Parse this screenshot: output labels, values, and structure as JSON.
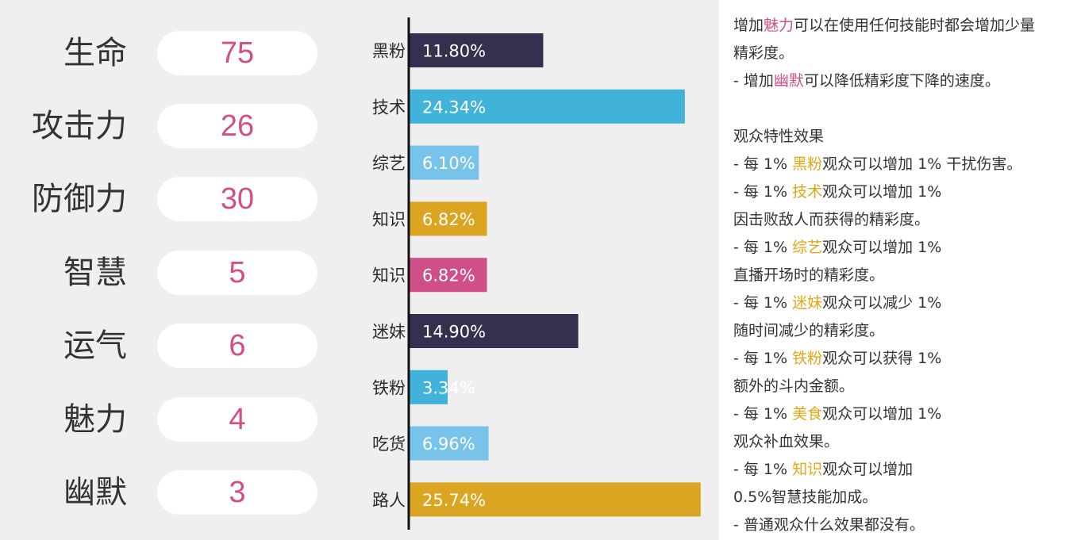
{
  "stats": [
    {
      "label": "生命",
      "value": "75"
    },
    {
      "label": "攻击力",
      "value": "26"
    },
    {
      "label": "防御力",
      "value": "30"
    },
    {
      "label": "智慧",
      "value": "5"
    },
    {
      "label": "运气",
      "value": "6"
    },
    {
      "label": "魅力",
      "value": "4"
    },
    {
      "label": "幽默",
      "value": "3"
    }
  ],
  "chart_data": {
    "type": "bar",
    "orientation": "horizontal",
    "categories": [
      "黑粉",
      "技术",
      "综艺",
      "知识",
      "知识",
      "迷妹",
      "铁粉",
      "吃货",
      "路人"
    ],
    "values": [
      11.8,
      24.34,
      6.1,
      6.82,
      6.82,
      14.9,
      3.34,
      6.96,
      25.74
    ],
    "value_labels": [
      "11.80%",
      "24.34%",
      "6.10%",
      "6.82%",
      "6.82%",
      "14.90%",
      "3.34%",
      "6.96%",
      "25.74%"
    ],
    "colors": [
      "#35304f",
      "#41b3da",
      "#78c3ea",
      "#dba522",
      "#d04f88",
      "#35304f",
      "#41b3da",
      "#78c3ea",
      "#dba522"
    ],
    "xlim": [
      0,
      26
    ],
    "title": "",
    "xlabel": "",
    "ylabel": "",
    "grid": false,
    "legend": "none"
  },
  "info": {
    "line1": {
      "pre": "增加",
      "hl": "魅力",
      "post": "可以在使用任何技能时都会增加少量"
    },
    "line2": "精彩度。",
    "line3": {
      "pre": "- 增加",
      "hl": "幽默",
      "post": "可以降低精彩度下降的速度。"
    },
    "heading": "观众特性效果",
    "effects": [
      {
        "pre": "- 每 1% ",
        "hl": "黑粉",
        "post": "观众可以增加 1% 干扰伤害。",
        "cont": ""
      },
      {
        "pre": "- 每 1% ",
        "hl": "技术",
        "post": "观众可以增加 1%",
        "cont": "因击败敌人而获得的精彩度。"
      },
      {
        "pre": "- 每 1% ",
        "hl": "综艺",
        "post": "观众可以增加 1%",
        "cont": "直播开场时的精彩度。"
      },
      {
        "pre": "- 每 1% ",
        "hl": "迷妹",
        "post": "观众可以减少 1%",
        "cont": "随时间减少的精彩度。"
      },
      {
        "pre": "- 每 1% ",
        "hl": "铁粉",
        "post": "观众可以获得 1%",
        "cont": "额外的斗内金额。"
      },
      {
        "pre": "- 每 1% ",
        "hl": "美食",
        "post": "观众可以增加 1%",
        "cont": "观众补血效果。"
      },
      {
        "pre": "- 每 1% ",
        "hl": "知识",
        "post": "观众可以增加",
        "cont": "0.5%智慧技能加成。"
      }
    ],
    "last_line": "- 普通观众什么效果都没有。"
  },
  "colors": {
    "highlight_pink": "#d04f88",
    "highlight_yellow": "#e0a818",
    "stat_value": "#d04f88"
  }
}
